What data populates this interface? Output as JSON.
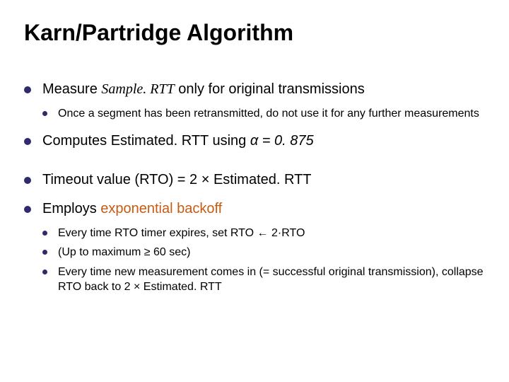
{
  "title": "Karn/Partridge Algorithm",
  "colors": {
    "bullet": "#2f2a6b",
    "accent": "#c75b12",
    "text": "#000000",
    "background": "#ffffff"
  },
  "typography": {
    "title_fontsize": 32,
    "top_bullet_fontsize": 20,
    "sub_bullet_fontsize": 16,
    "font_family": "Arial",
    "serif_italic_family": "Times New Roman"
  },
  "bullets": {
    "b1_pre": "Measure ",
    "b1_sample": "Sample. RTT",
    "b1_post": " only for original transmissions",
    "b1_sub1": "Once a segment has been retransmitted, do not use it for any further measurements",
    "b2_pre": "Computes Estimated. RTT using ",
    "b2_ital": "α = 0. 875",
    "b3": "Timeout value (RTO)  = 2 × Estimated. RTT",
    "b4_pre": "Employs ",
    "b4_accent": "exponential backoff",
    "b4_sub1": "Every time RTO timer expires, set RTO ← 2·RTO",
    "b4_sub2": "(Up  to maximum ≥ 60 sec)",
    "b4_sub3": "Every time new measurement comes in (= successful original transmission), collapse RTO back to 2 × Estimated. RTT"
  }
}
